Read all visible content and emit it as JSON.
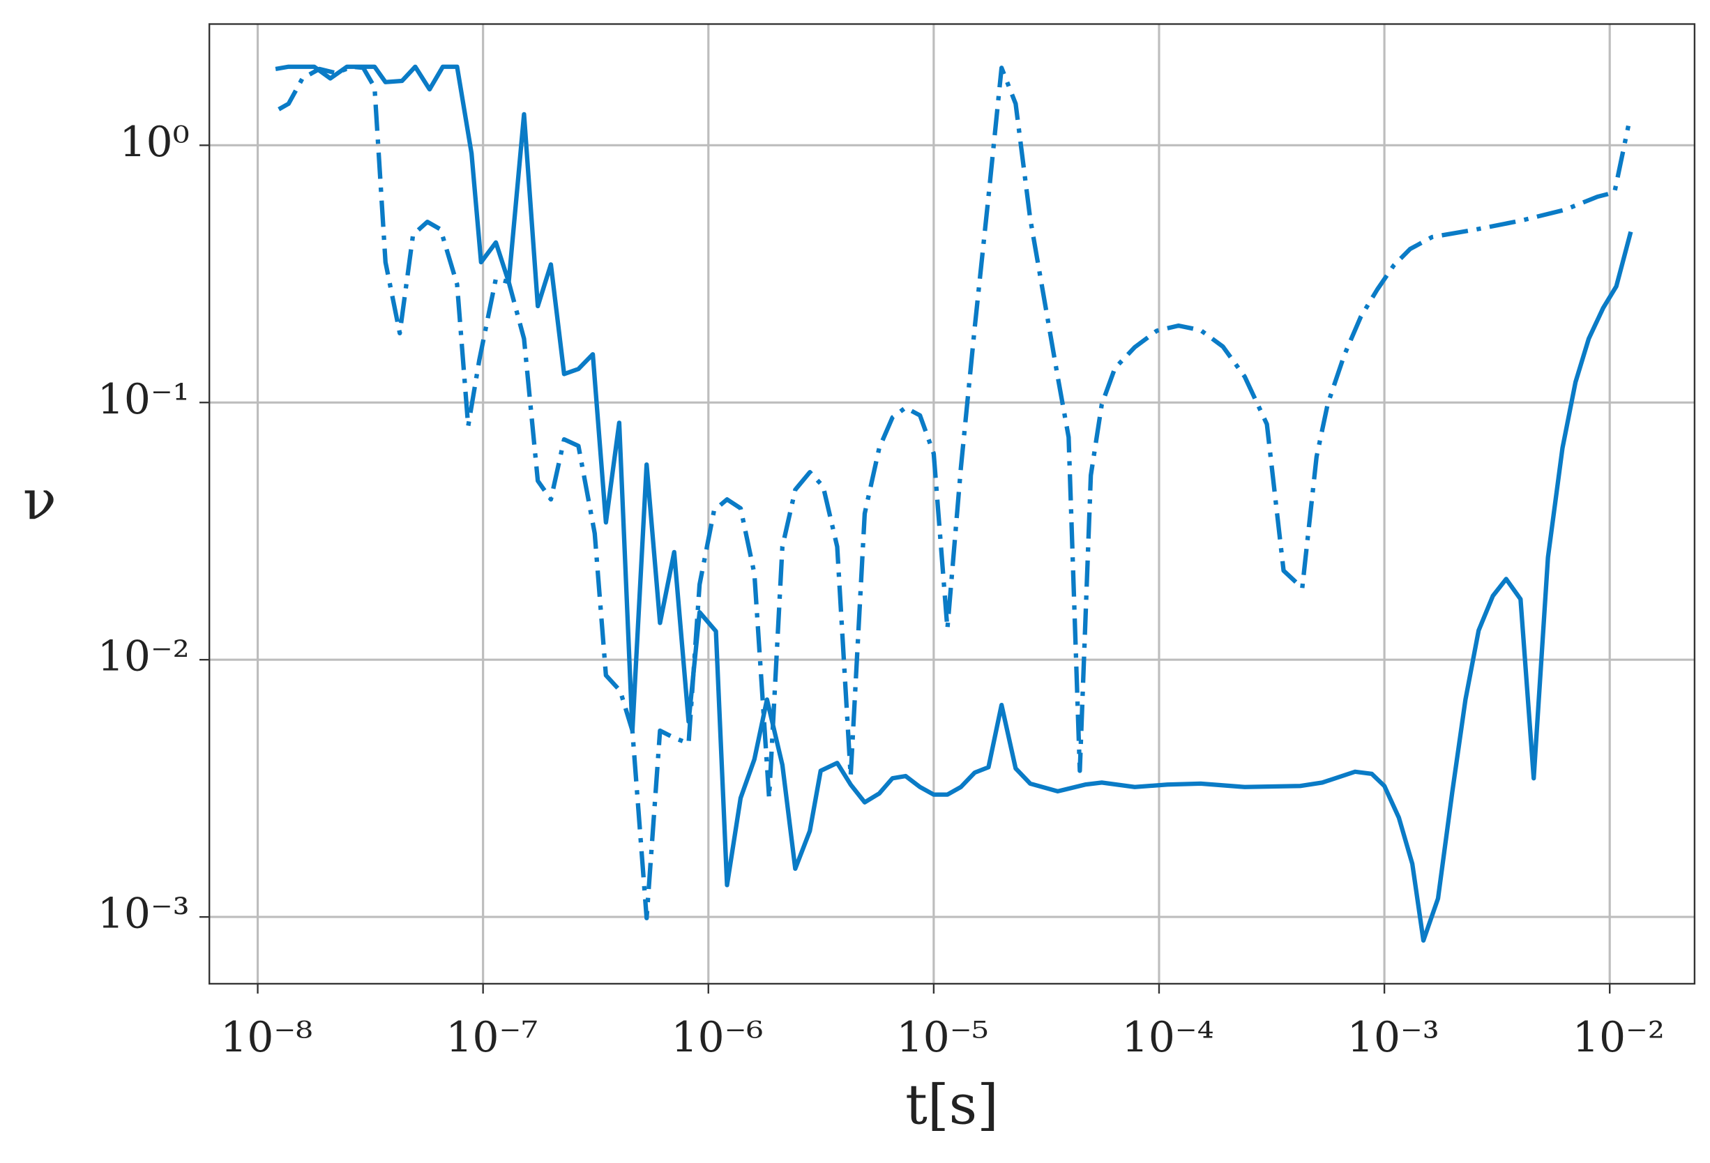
{
  "chart_data": {
    "type": "line",
    "xscale": "log",
    "yscale": "log",
    "grid": true,
    "xlabel": "t[s]",
    "ylabel": "ν",
    "xlim": [
      6.1e-09,
      0.0238
    ],
    "ylim": [
      0.00055,
      2.96
    ],
    "xticks": [
      {
        "value": 1e-08,
        "label": "10⁻⁸"
      },
      {
        "value": 1e-07,
        "label": "10⁻⁷"
      },
      {
        "value": 1e-06,
        "label": "10⁻⁶"
      },
      {
        "value": 1e-05,
        "label": "10⁻⁵"
      },
      {
        "value": 0.0001,
        "label": "10⁻⁴"
      },
      {
        "value": 0.001,
        "label": "10⁻³"
      },
      {
        "value": 0.01,
        "label": "10⁻²"
      }
    ],
    "yticks": [
      {
        "value": 0.001,
        "label": "10⁻³"
      },
      {
        "value": 0.01,
        "label": "10⁻²"
      },
      {
        "value": 0.1,
        "label": "10⁻¹"
      },
      {
        "value": 1,
        "label": "10⁰"
      }
    ],
    "series": [
      {
        "color": "#0a7bc6",
        "linestyle": "solid",
        "x": [
          1.2e-08,
          1.37e-08,
          1.78e-08,
          2.1e-08,
          2.49e-08,
          3.3e-08,
          3.69e-08,
          4.37e-08,
          5e-08,
          5.79e-08,
          6.63e-08,
          7.67e-08,
          8.89e-08,
          9.8e-08,
          1.14e-07,
          1.3e-07,
          1.52e-07,
          1.75e-07,
          2e-07,
          2.29e-07,
          2.65e-07,
          3.07e-07,
          3.51e-07,
          4.02e-07,
          4.6e-07,
          5.32e-07,
          6.1e-07,
          7.05e-07,
          8.17e-07,
          9.14e-07,
          1.08e-06,
          1.21e-06,
          1.39e-06,
          1.6e-06,
          1.82e-06,
          2.13e-06,
          2.43e-06,
          2.82e-06,
          3.15e-06,
          3.73e-06,
          4.28e-06,
          4.94e-06,
          5.73e-06,
          6.56e-06,
          7.5e-06,
          8.69e-06,
          1e-05,
          1.15e-05,
          1.32e-05,
          1.52e-05,
          1.75e-05,
          2e-05,
          2.31e-05,
          2.68e-05,
          3.55e-05,
          4.7e-05,
          5.57e-05,
          7.8e-05,
          0.000109,
          0.000153,
          0.00024,
          0.000423,
          0.00053,
          0.000741,
          0.000879,
          0.001,
          0.00116,
          0.00133,
          0.00149,
          0.00173,
          0.002,
          0.00229,
          0.00262,
          0.00303,
          0.00347,
          0.00402,
          0.0046,
          0.00532,
          0.00617,
          0.00705,
          0.00807,
          0.00935,
          0.0107,
          0.0124
        ],
        "values": [
          1.98,
          2.02,
          2.02,
          1.82,
          2.02,
          2.02,
          1.76,
          1.78,
          2.02,
          1.65,
          2.02,
          2.02,
          0.93,
          0.351,
          0.419,
          0.294,
          1.32,
          0.237,
          0.344,
          0.129,
          0.135,
          0.154,
          0.0342,
          0.0834,
          0.0053,
          0.0574,
          0.0139,
          0.0262,
          0.00575,
          0.0153,
          0.0129,
          0.00133,
          0.0029,
          0.0041,
          0.007,
          0.0039,
          0.00154,
          0.00216,
          0.0037,
          0.00397,
          0.00327,
          0.00279,
          0.00302,
          0.00346,
          0.00353,
          0.0032,
          0.00299,
          0.00299,
          0.0032,
          0.00364,
          0.00382,
          0.00667,
          0.00378,
          0.0033,
          0.00308,
          0.00327,
          0.00333,
          0.0032,
          0.00327,
          0.0033,
          0.0032,
          0.00323,
          0.00333,
          0.00367,
          0.0036,
          0.00323,
          0.00243,
          0.00161,
          0.00081,
          0.00118,
          0.00305,
          0.007,
          0.013,
          0.0177,
          0.0206,
          0.0172,
          0.00346,
          0.025,
          0.0665,
          0.12,
          0.177,
          0.233,
          0.283,
          0.461
        ]
      },
      {
        "color": "#0a7bc6",
        "linestyle": "dashdot",
        "x": [
          1.24e-08,
          1.37e-08,
          1.58e-08,
          1.88e-08,
          2.22e-08,
          2.63e-08,
          2.94e-08,
          3.3e-08,
          3.69e-08,
          4.27e-08,
          4.89e-08,
          5.66e-08,
          6.48e-08,
          7.67e-08,
          8.59e-08,
          9.62e-08,
          1.14e-07,
          1.3e-07,
          1.52e-07,
          1.75e-07,
          2e-07,
          2.29e-07,
          2.65e-07,
          3.13e-07,
          3.51e-07,
          4.06e-07,
          4.6e-07,
          5.32e-07,
          6.1e-07,
          7.05e-07,
          8.17e-07,
          9.14e-07,
          1.06e-06,
          1.21e-06,
          1.39e-06,
          1.6e-06,
          1.86e-06,
          2.13e-06,
          2.43e-06,
          2.82e-06,
          3.23e-06,
          3.73e-06,
          4.28e-06,
          4.94e-06,
          5.73e-06,
          6.56e-06,
          7.5e-06,
          8.69e-06,
          1e-05,
          1.15e-05,
          1.32e-05,
          1.52e-05,
          1.75e-05,
          2e-05,
          2.31e-05,
          2.68e-05,
          3.07e-05,
          3.55e-05,
          3.97e-05,
          4.45e-05,
          4.98e-05,
          5.57e-05,
          6.37e-05,
          7.8e-05,
          9.77e-05,
          0.000122,
          0.000153,
          0.000192,
          0.00024,
          0.000301,
          0.000357,
          0.000432,
          0.0005,
          0.00056,
          0.000664,
          0.000785,
          0.00093,
          0.0011,
          0.0013,
          0.00163,
          0.00256,
          0.00402,
          0.00631,
          0.00883,
          0.0105,
          0.0121
        ],
        "values": [
          1.38,
          1.45,
          1.82,
          1.98,
          1.91,
          2.02,
          2.0,
          1.68,
          0.351,
          0.186,
          0.449,
          0.504,
          0.471,
          0.288,
          0.0809,
          0.146,
          0.303,
          0.294,
          0.177,
          0.0496,
          0.042,
          0.0719,
          0.0678,
          0.031,
          0.0087,
          0.00757,
          0.0053,
          0.00099,
          0.0053,
          0.00497,
          0.00473,
          0.0196,
          0.0381,
          0.042,
          0.0388,
          0.0216,
          0.0029,
          0.0275,
          0.0458,
          0.0536,
          0.0472,
          0.0275,
          0.00353,
          0.037,
          0.0665,
          0.0875,
          0.0955,
          0.0891,
          0.0633,
          0.0132,
          0.0557,
          0.195,
          0.631,
          2.0,
          1.45,
          0.519,
          0.262,
          0.126,
          0.0733,
          0.0037,
          0.0521,
          0.0984,
          0.136,
          0.164,
          0.19,
          0.199,
          0.191,
          0.165,
          0.126,
          0.0824,
          0.0222,
          0.019,
          0.0615,
          0.0984,
          0.153,
          0.215,
          0.275,
          0.341,
          0.395,
          0.44,
          0.471,
          0.509,
          0.561,
          0.631,
          0.656,
          1.19
        ]
      }
    ]
  }
}
